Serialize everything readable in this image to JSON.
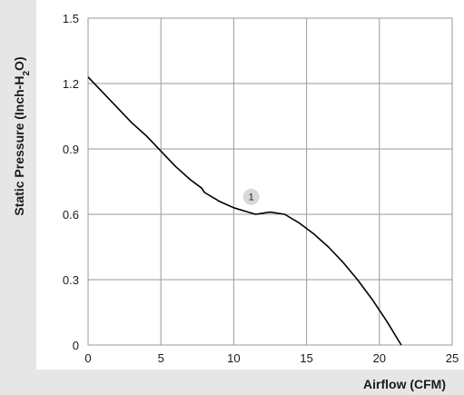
{
  "chart_data": {
    "type": "line",
    "title": "",
    "xlabel": "Airflow (CFM)",
    "ylabel_parts": [
      "Static Pressure (Inch-H",
      "2",
      "O)"
    ],
    "xlim": [
      0,
      25
    ],
    "ylim": [
      0,
      1.5
    ],
    "xticks": [
      "0",
      "5",
      "10",
      "15",
      "20",
      "25"
    ],
    "yticks": [
      "0",
      "0.3",
      "0.6",
      "0.9",
      "1.2",
      "1.5"
    ],
    "grid": true,
    "colors": {
      "panel_band": "#e6e6e6",
      "grid": "#9a9a9a",
      "line": "#000000",
      "marker_fill": "#d9d9d9"
    },
    "series": [
      {
        "x": [
          0,
          1,
          2,
          3,
          4,
          5,
          6,
          7,
          7.8,
          8,
          9,
          10,
          11,
          11.5,
          12.5,
          13.5,
          14.5,
          15.5,
          16.5,
          17.5,
          18.5,
          19.5,
          20.5,
          21.5
        ],
        "y": [
          1.23,
          1.16,
          1.09,
          1.02,
          0.96,
          0.89,
          0.82,
          0.76,
          0.72,
          0.7,
          0.66,
          0.63,
          0.61,
          0.6,
          0.61,
          0.6,
          0.56,
          0.51,
          0.45,
          0.38,
          0.3,
          0.21,
          0.11,
          0.0
        ]
      }
    ],
    "annotations": [
      {
        "text": "1",
        "x": 11.2,
        "y": 0.68
      }
    ]
  }
}
